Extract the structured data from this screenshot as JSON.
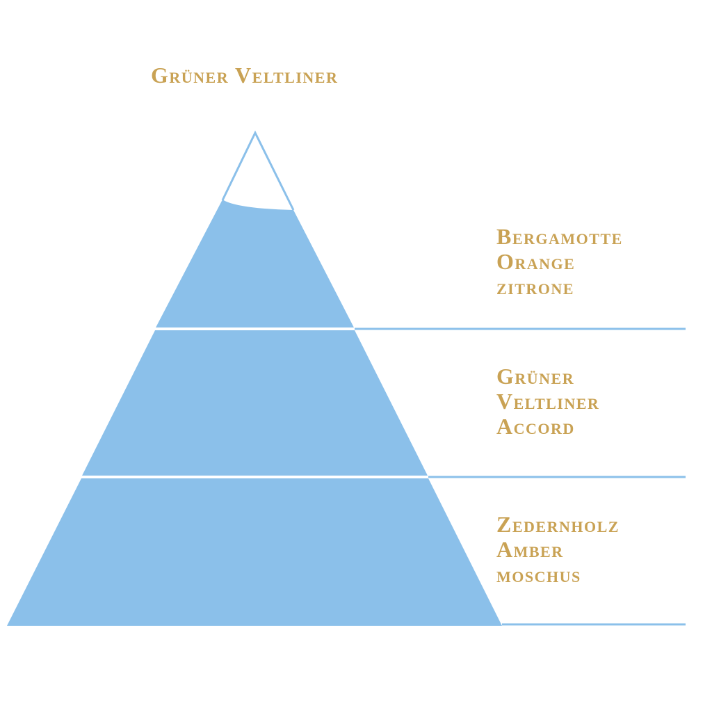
{
  "title": "Grüner Veltliner",
  "colors": {
    "fill": "#8bc0ea",
    "text": "#c9a254",
    "background": "#ffffff"
  },
  "tiers": [
    {
      "level": "top",
      "notes": [
        "Bergamotte",
        "Orange",
        "zitrone"
      ]
    },
    {
      "level": "heart",
      "notes": [
        "Grüner",
        "Veltliner",
        "Accord"
      ]
    },
    {
      "level": "base",
      "notes": [
        "Zedernholz",
        "Amber",
        "moschus"
      ]
    }
  ]
}
